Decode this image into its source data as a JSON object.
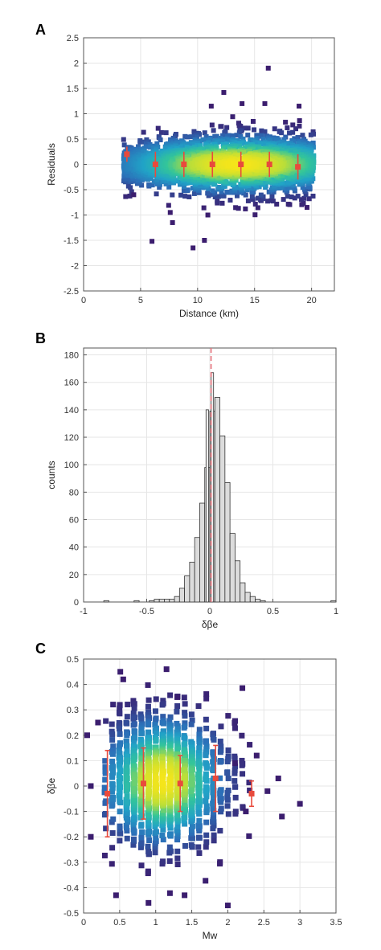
{
  "chart_data": [
    {
      "panel": "A",
      "type": "scatter",
      "title": "",
      "xlabel": "Distance (km)",
      "ylabel": "Residuals",
      "xlim": [
        0,
        22
      ],
      "ylim": [
        -2.5,
        2.5
      ],
      "xticks": [
        0,
        5,
        10,
        15,
        20
      ],
      "yticks": [
        -2.5,
        -2,
        -1.5,
        -1,
        -0.5,
        0,
        0.5,
        1,
        1.5,
        2,
        2.5
      ],
      "grid": true,
      "density_colormap": [
        "#3b1d6e",
        "#2c6fb8",
        "#21a3c7",
        "#33c59a",
        "#b9de3a",
        "#f5e51a"
      ],
      "density_cloud": {
        "x_range": [
          3.5,
          20.2
        ],
        "y_center": 0,
        "y_spread": 0.3
      },
      "outliers": [
        {
          "x": 12.3,
          "y": 1.42
        },
        {
          "x": 16.2,
          "y": 1.9
        },
        {
          "x": 6.0,
          "y": -1.52
        },
        {
          "x": 9.6,
          "y": -1.65
        },
        {
          "x": 10.6,
          "y": -1.5
        },
        {
          "x": 7.8,
          "y": -1.15
        },
        {
          "x": 13.9,
          "y": 1.2
        },
        {
          "x": 11.2,
          "y": 1.15
        },
        {
          "x": 18.9,
          "y": 1.15
        },
        {
          "x": 15.9,
          "y": 1.2
        },
        {
          "x": 7.6,
          "y": -0.95
        },
        {
          "x": 4.4,
          "y": -0.6
        },
        {
          "x": 19.6,
          "y": -0.85
        },
        {
          "x": 10.9,
          "y": -1.0
        }
      ],
      "binned_means": {
        "color": "#e84a3c",
        "points": [
          {
            "x": 3.8,
            "y": 0.2,
            "err": 0.15
          },
          {
            "x": 6.3,
            "y": 0.0,
            "err": 0.25
          },
          {
            "x": 8.8,
            "y": 0.0,
            "err": 0.25
          },
          {
            "x": 11.3,
            "y": 0.0,
            "err": 0.25
          },
          {
            "x": 13.8,
            "y": 0.0,
            "err": 0.25
          },
          {
            "x": 16.3,
            "y": 0.0,
            "err": 0.25
          },
          {
            "x": 18.8,
            "y": -0.05,
            "err": 0.25
          }
        ]
      }
    },
    {
      "panel": "B",
      "type": "bar",
      "title": "",
      "xlabel": "δβe",
      "ylabel": "counts",
      "xlim": [
        -1,
        1
      ],
      "ylim": [
        0,
        185
      ],
      "xticks": [
        -1,
        -0.5,
        0,
        0.5,
        1
      ],
      "yticks": [
        0,
        20,
        40,
        60,
        80,
        100,
        120,
        140,
        160,
        180
      ],
      "grid": true,
      "bar_color": "#dcdcdc",
      "bin_width": 0.04,
      "bins": [
        {
          "x": -0.82,
          "count": 1
        },
        {
          "x": -0.58,
          "count": 1
        },
        {
          "x": -0.46,
          "count": 1
        },
        {
          "x": -0.42,
          "count": 2
        },
        {
          "x": -0.38,
          "count": 2
        },
        {
          "x": -0.34,
          "count": 2
        },
        {
          "x": -0.3,
          "count": 2
        },
        {
          "x": -0.26,
          "count": 4
        },
        {
          "x": -0.22,
          "count": 10
        },
        {
          "x": -0.18,
          "count": 19
        },
        {
          "x": -0.14,
          "count": 29
        },
        {
          "x": -0.1,
          "count": 47
        },
        {
          "x": -0.06,
          "count": 72
        },
        {
          "x": -0.02,
          "count": 98
        },
        {
          "x": 0.02,
          "count": 139
        },
        {
          "x": 0.06,
          "count": 149
        },
        {
          "x": 0.1,
          "count": 121
        },
        {
          "x": 0.14,
          "count": 87
        },
        {
          "x": 0.18,
          "count": 50
        },
        {
          "x": 0.22,
          "count": 30
        },
        {
          "x": 0.26,
          "count": 14
        },
        {
          "x": 0.3,
          "count": 7
        },
        {
          "x": 0.34,
          "count": 4
        },
        {
          "x": 0.38,
          "count": 2
        },
        {
          "x": 0.42,
          "count": 1
        },
        {
          "x": 0.98,
          "count": 1
        }
      ],
      "overlay_bins": [
        {
          "x": -0.02,
          "count": 140
        },
        {
          "x": 0.02,
          "count": 167
        }
      ],
      "mean_line": {
        "x": 0.01,
        "color": "#e8707a",
        "style": "dashed"
      }
    },
    {
      "panel": "C",
      "type": "scatter",
      "title": "",
      "xlabel": "Mw",
      "ylabel": "δβe",
      "xlim": [
        0,
        3.5
      ],
      "ylim": [
        -0.5,
        0.5
      ],
      "xticks": [
        0,
        0.5,
        1,
        1.5,
        2,
        2.5,
        3,
        3.5
      ],
      "yticks": [
        -0.5,
        -0.4,
        -0.3,
        -0.2,
        -0.1,
        0,
        0.1,
        0.2,
        0.3,
        0.4,
        0.5
      ],
      "grid": true,
      "density_colormap": [
        "#3b1d6e",
        "#2c6fb8",
        "#21a3c7",
        "#33c59a",
        "#b9de3a",
        "#f5e51a"
      ],
      "density_cloud": {
        "x_range": [
          0.3,
          2.4
        ],
        "x_center": 1.1,
        "y_center": 0.02,
        "y_spread": 0.13
      },
      "outliers": [
        {
          "x": 1.15,
          "y": 0.46
        },
        {
          "x": 0.55,
          "y": 0.42
        },
        {
          "x": 1.3,
          "y": 0.35
        },
        {
          "x": 0.2,
          "y": 0.25
        },
        {
          "x": 0.05,
          "y": 0.2
        },
        {
          "x": 0.1,
          "y": -0.2
        },
        {
          "x": 0.45,
          "y": -0.43
        },
        {
          "x": 2.0,
          "y": -0.47
        },
        {
          "x": 2.7,
          "y": 0.03
        },
        {
          "x": 3.0,
          "y": -0.07
        },
        {
          "x": 2.75,
          "y": -0.12
        },
        {
          "x": 2.4,
          "y": 0.12
        },
        {
          "x": 2.55,
          "y": -0.02
        },
        {
          "x": 1.4,
          "y": -0.43
        },
        {
          "x": 0.9,
          "y": -0.46
        },
        {
          "x": 0.1,
          "y": 0.0
        },
        {
          "x": 2.1,
          "y": 0.09
        },
        {
          "x": 2.25,
          "y": -0.1
        }
      ],
      "binned_means": {
        "color": "#e84a3c",
        "points": [
          {
            "x": 0.33,
            "y": -0.03,
            "err": 0.17
          },
          {
            "x": 0.83,
            "y": 0.01,
            "err": 0.14
          },
          {
            "x": 1.34,
            "y": 0.01,
            "err": 0.11
          },
          {
            "x": 1.83,
            "y": 0.03,
            "err": 0.13
          },
          {
            "x": 2.33,
            "y": -0.03,
            "err": 0.05
          }
        ]
      }
    }
  ]
}
